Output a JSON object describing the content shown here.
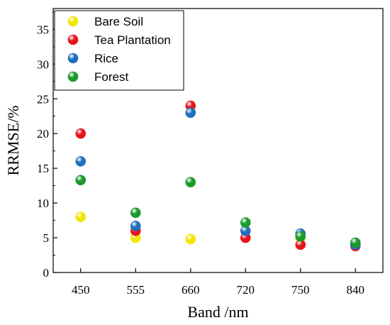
{
  "chart_data": {
    "type": "scatter",
    "title": "",
    "xlabel": "Band /nm",
    "ylabel": "RRMSE/%",
    "categories": [
      "450",
      "555",
      "660",
      "720",
      "750",
      "840"
    ],
    "ylim": [
      0,
      38
    ],
    "yticks": [
      0,
      5,
      10,
      15,
      20,
      25,
      30,
      35
    ],
    "grid": false,
    "legend_position": "top-left",
    "series": [
      {
        "name": "Bare Soil",
        "color": "#f2e600",
        "values": [
          8.0,
          5.0,
          4.8,
          5.0,
          5.0,
          4.0
        ]
      },
      {
        "name": "Tea Plantation",
        "color": "#e8141b",
        "values": [
          20.0,
          6.0,
          24.0,
          5.0,
          4.0,
          3.8
        ]
      },
      {
        "name": "Rice",
        "color": "#1f6fc0",
        "values": [
          16.0,
          6.7,
          23.0,
          6.0,
          5.6,
          4.0
        ]
      },
      {
        "name": "Forest",
        "color": "#1a9a2a",
        "values": [
          13.3,
          8.6,
          13.0,
          7.2,
          5.2,
          4.3
        ]
      }
    ]
  }
}
